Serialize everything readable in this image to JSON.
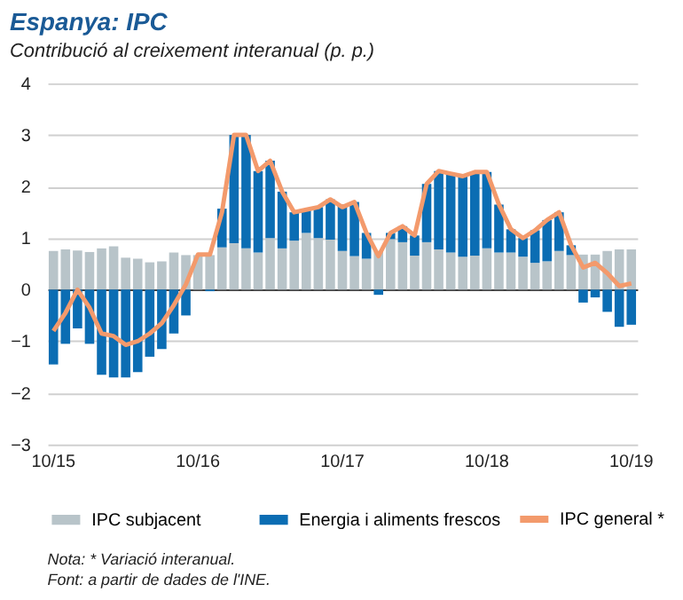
{
  "chart_data": {
    "type": "bar",
    "title": "Espanya: IPC",
    "subtitle": "Contribució al creixement interanual (p. p.)",
    "categories": [
      "10/15",
      null,
      null,
      null,
      null,
      null,
      null,
      null,
      null,
      null,
      null,
      null,
      "10/16",
      null,
      null,
      null,
      null,
      null,
      null,
      null,
      null,
      null,
      null,
      null,
      "10/17",
      null,
      null,
      null,
      null,
      null,
      null,
      null,
      null,
      null,
      null,
      null,
      "10/18",
      null,
      null,
      null,
      null,
      null,
      null,
      null,
      null,
      null,
      null,
      null,
      "10/19"
    ],
    "stacked": true,
    "series": [
      {
        "name": "IPC subjacent",
        "color": "#b8c4c9",
        "values": [
          0.75,
          0.78,
          0.76,
          0.73,
          0.8,
          0.84,
          0.62,
          0.6,
          0.53,
          0.55,
          0.72,
          0.67,
          0.67,
          0.67,
          0.82,
          0.9,
          0.8,
          0.72,
          1.0,
          0.8,
          0.95,
          1.1,
          1.0,
          0.97,
          0.75,
          0.65,
          0.6,
          0.75,
          0.98,
          0.92,
          0.66,
          0.92,
          0.78,
          0.72,
          0.64,
          0.66,
          0.8,
          0.72,
          0.72,
          0.64,
          0.52,
          0.55,
          0.75,
          0.67,
          0.68,
          0.68,
          0.75,
          0.78,
          0.78
        ]
      },
      {
        "name": "Energia i aliments frescos",
        "color": "#0b6db3",
        "values": [
          -1.45,
          -1.05,
          -0.75,
          -1.05,
          -1.65,
          -1.7,
          -1.7,
          -1.6,
          -1.3,
          -1.15,
          -0.85,
          -0.5,
          0.0,
          -0.03,
          0.75,
          2.1,
          2.2,
          1.58,
          1.5,
          1.1,
          0.55,
          0.45,
          0.6,
          0.78,
          0.9,
          1.05,
          0.5,
          -0.1,
          0.12,
          0.31,
          0.39,
          1.13,
          1.52,
          1.53,
          1.56,
          1.62,
          1.48,
          0.93,
          0.45,
          0.36,
          0.63,
          0.8,
          0.75,
          0.19,
          -0.25,
          -0.15,
          -0.43,
          -0.72,
          -0.68
        ]
      },
      {
        "name": "IPC general *",
        "type": "line",
        "color": "#f39a6c",
        "values": [
          -0.8,
          -0.45,
          0.0,
          -0.35,
          -0.85,
          -0.9,
          -1.07,
          -1.0,
          -0.85,
          -0.65,
          -0.3,
          0.1,
          0.68,
          0.68,
          1.5,
          3.0,
          3.0,
          2.3,
          2.5,
          1.9,
          1.5,
          1.55,
          1.6,
          1.75,
          1.6,
          1.7,
          1.1,
          0.65,
          1.1,
          1.23,
          1.05,
          2.05,
          2.3,
          2.25,
          2.2,
          2.28,
          2.28,
          1.65,
          1.17,
          1.0,
          1.15,
          1.35,
          1.5,
          0.86,
          0.43,
          0.52,
          0.32,
          0.07,
          0.12
        ]
      }
    ],
    "ylim": [
      -3,
      4
    ],
    "yticks": [
      -3,
      -2,
      -1,
      0,
      1,
      2,
      3,
      4
    ],
    "grid": "y",
    "legend": "bottom",
    "line_style": "solid",
    "marker": "none",
    "annotations": [
      "Nota: * Variació interanual.",
      "Font: a partir de dades de l'INE."
    ]
  }
}
